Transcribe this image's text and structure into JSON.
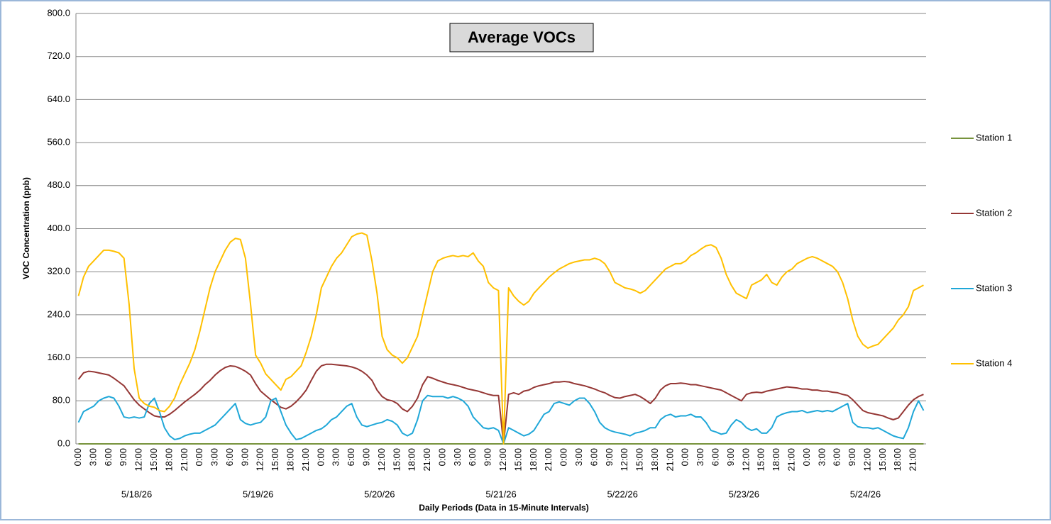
{
  "chart_data": {
    "type": "line",
    "title": "Average VOCs",
    "x_label": "Daily Periods (Data in 15-Minute Intervals)",
    "y_label": "VOC Concentration (ppb)",
    "ylim": [
      0,
      800
    ],
    "yticks": [
      {
        "value": 0,
        "label": "0.0"
      },
      {
        "value": 80,
        "label": "80.0"
      },
      {
        "value": 160,
        "label": "160.0"
      },
      {
        "value": 240,
        "label": "240.0"
      },
      {
        "value": 320,
        "label": "320.0"
      },
      {
        "value": 400,
        "label": "400.0"
      },
      {
        "value": 480,
        "label": "480.0"
      },
      {
        "value": 560,
        "label": "560.0"
      },
      {
        "value": 640,
        "label": "640.0"
      },
      {
        "value": 720,
        "label": "720.0"
      },
      {
        "value": 800,
        "label": "800.0"
      }
    ],
    "grid": true,
    "legend": "right",
    "dates": [
      "5/18/26",
      "5/19/26",
      "5/20/26",
      "5/21/26",
      "5/22/26",
      "5/23/26",
      "5/24/26"
    ],
    "categories": [
      "0:00",
      null,
      null,
      "3:00",
      null,
      null,
      "6:00",
      null,
      null,
      "9:00",
      null,
      null,
      "12:00",
      null,
      null,
      "15:00",
      null,
      null,
      "18:00",
      null,
      null,
      "21:00",
      null,
      null,
      "0:00",
      null,
      null,
      "3:00",
      null,
      null,
      "6:00",
      null,
      null,
      "9:00",
      null,
      null,
      "12:00",
      null,
      null,
      "15:00",
      null,
      null,
      "18:00",
      null,
      null,
      "21:00",
      null,
      null,
      "0:00",
      null,
      null,
      "3:00",
      null,
      null,
      "6:00",
      null,
      null,
      "9:00",
      null,
      null,
      "12:00",
      null,
      null,
      "15:00",
      null,
      null,
      "18:00",
      null,
      null,
      "21:00",
      null,
      null,
      "0:00",
      null,
      null,
      "3:00",
      null,
      null,
      "6:00",
      null,
      null,
      "9:00",
      null,
      null,
      "12:00",
      null,
      null,
      "15:00",
      null,
      null,
      "18:00",
      null,
      null,
      "21:00",
      null,
      null,
      "0:00",
      null,
      null,
      "3:00",
      null,
      null,
      "6:00",
      null,
      null,
      "9:00",
      null,
      null,
      "12:00",
      null,
      null,
      "15:00",
      null,
      null,
      "18:00",
      null,
      null,
      "21:00",
      null,
      null,
      "0:00",
      null,
      null,
      "3:00",
      null,
      null,
      "6:00",
      null,
      null,
      "9:00",
      null,
      null,
      "12:00",
      null,
      null,
      "15:00",
      null,
      null,
      "18:00",
      null,
      null,
      "21:00",
      null,
      null,
      "0:00",
      null,
      null,
      "3:00",
      null,
      null,
      "6:00",
      null,
      null,
      "9:00",
      null,
      null,
      "12:00",
      null,
      null,
      "15:00",
      null,
      null,
      "18:00",
      null,
      null,
      "21:00",
      null,
      null
    ],
    "series": [
      {
        "name": "Station 1",
        "color": "#77933c",
        "values": [
          0,
          0,
          0,
          0,
          0,
          0,
          0,
          0,
          0,
          0,
          0,
          0,
          0,
          0,
          0,
          0,
          0,
          0,
          0,
          0,
          0,
          0,
          0,
          0,
          0,
          0,
          0,
          0,
          0,
          0,
          0,
          0,
          0,
          0,
          0,
          0,
          0,
          0,
          0,
          0,
          0,
          0,
          0,
          0,
          0,
          0,
          0,
          0,
          0,
          0,
          0,
          0,
          0,
          0,
          0,
          0,
          0,
          0,
          0,
          0,
          0,
          0,
          0,
          0,
          0,
          0,
          0,
          0,
          0,
          0,
          0,
          0,
          0,
          0,
          0,
          0,
          0,
          0,
          0,
          0,
          0,
          0,
          0,
          0,
          0,
          0,
          0,
          0,
          0,
          0,
          0,
          0,
          0,
          0,
          0,
          0,
          0,
          0,
          0,
          0,
          0,
          0,
          0,
          0,
          0,
          0,
          0,
          0,
          0,
          0,
          0,
          0,
          0,
          0,
          0,
          0,
          0,
          0,
          0,
          0,
          0,
          0,
          0,
          0,
          0,
          0,
          0,
          0,
          0,
          0,
          0,
          0,
          0,
          0,
          0,
          0,
          0,
          0,
          0,
          0,
          0,
          0,
          0,
          0,
          0,
          0,
          0,
          0,
          0,
          0,
          0,
          0,
          0,
          0,
          0,
          0,
          0,
          0,
          0,
          0,
          0,
          0,
          0,
          0,
          0,
          0,
          0,
          0
        ]
      },
      {
        "name": "Station 2",
        "color": "#953735",
        "values": [
          120,
          132,
          135,
          134,
          132,
          130,
          128,
          122,
          115,
          108,
          95,
          82,
          72,
          65,
          58,
          52,
          50,
          50,
          55,
          62,
          70,
          78,
          85,
          92,
          100,
          110,
          118,
          128,
          136,
          142,
          145,
          144,
          140,
          135,
          128,
          112,
          98,
          90,
          82,
          75,
          68,
          65,
          70,
          78,
          88,
          100,
          118,
          135,
          145,
          148,
          148,
          147,
          146,
          145,
          143,
          140,
          135,
          128,
          118,
          100,
          88,
          82,
          80,
          75,
          65,
          60,
          70,
          85,
          110,
          125,
          122,
          118,
          115,
          112,
          110,
          108,
          105,
          102,
          100,
          98,
          95,
          92,
          90,
          90,
          0,
          92,
          95,
          92,
          98,
          100,
          105,
          108,
          110,
          112,
          115,
          115,
          116,
          115,
          112,
          110,
          108,
          105,
          102,
          98,
          95,
          90,
          86,
          85,
          88,
          90,
          92,
          88,
          82,
          75,
          85,
          100,
          108,
          112,
          112,
          113,
          112,
          110,
          110,
          108,
          106,
          104,
          102,
          100,
          95,
          90,
          85,
          80,
          92,
          95,
          96,
          95,
          98,
          100,
          102,
          104,
          106,
          105,
          104,
          102,
          102,
          100,
          100,
          98,
          98,
          96,
          95,
          92,
          90,
          82,
          72,
          62,
          58,
          56,
          54,
          52,
          48,
          45,
          48,
          60,
          72,
          82,
          88,
          92
        ]
      },
      {
        "name": "Station 3",
        "color": "#1fa7d8",
        "values": [
          40,
          60,
          65,
          70,
          80,
          85,
          88,
          85,
          70,
          50,
          48,
          50,
          48,
          50,
          75,
          85,
          60,
          30,
          15,
          8,
          10,
          15,
          18,
          20,
          20,
          25,
          30,
          35,
          45,
          55,
          65,
          75,
          45,
          38,
          35,
          38,
          40,
          50,
          80,
          85,
          60,
          35,
          20,
          8,
          10,
          15,
          20,
          25,
          28,
          35,
          45,
          50,
          60,
          70,
          75,
          50,
          35,
          32,
          35,
          38,
          40,
          45,
          42,
          35,
          20,
          15,
          20,
          45,
          80,
          90,
          88,
          88,
          88,
          85,
          88,
          85,
          80,
          70,
          50,
          40,
          30,
          28,
          30,
          25,
          0,
          30,
          25,
          20,
          15,
          18,
          25,
          40,
          55,
          60,
          75,
          78,
          75,
          72,
          80,
          85,
          85,
          75,
          60,
          40,
          30,
          25,
          22,
          20,
          18,
          15,
          20,
          22,
          25,
          30,
          30,
          45,
          52,
          55,
          50,
          52,
          52,
          55,
          50,
          50,
          40,
          25,
          22,
          18,
          20,
          35,
          45,
          40,
          30,
          25,
          28,
          20,
          20,
          30,
          50,
          55,
          58,
          60,
          60,
          62,
          58,
          60,
          62,
          60,
          62,
          60,
          65,
          70,
          75,
          40,
          32,
          30,
          30,
          28,
          30,
          25,
          20,
          15,
          12,
          10,
          30,
          60,
          80,
          62
        ]
      },
      {
        "name": "Station 4",
        "color": "#ffc000",
        "values": [
          275,
          310,
          330,
          340,
          350,
          360,
          360,
          358,
          355,
          345,
          260,
          140,
          85,
          75,
          70,
          68,
          62,
          60,
          70,
          85,
          110,
          130,
          150,
          175,
          210,
          250,
          290,
          320,
          340,
          360,
          375,
          382,
          380,
          345,
          260,
          165,
          150,
          130,
          120,
          110,
          100,
          120,
          125,
          135,
          145,
          170,
          200,
          240,
          290,
          310,
          330,
          345,
          355,
          370,
          385,
          390,
          392,
          388,
          340,
          280,
          200,
          175,
          165,
          160,
          150,
          160,
          180,
          200,
          240,
          280,
          320,
          340,
          345,
          348,
          350,
          348,
          350,
          348,
          355,
          340,
          330,
          300,
          290,
          285,
          0,
          290,
          275,
          265,
          258,
          265,
          280,
          290,
          300,
          310,
          318,
          325,
          330,
          335,
          338,
          340,
          342,
          342,
          345,
          342,
          335,
          320,
          300,
          295,
          290,
          288,
          285,
          280,
          285,
          295,
          305,
          315,
          325,
          330,
          335,
          335,
          340,
          350,
          355,
          362,
          368,
          370,
          365,
          345,
          315,
          295,
          280,
          275,
          270,
          295,
          300,
          305,
          315,
          300,
          295,
          310,
          320,
          325,
          335,
          340,
          345,
          348,
          345,
          340,
          335,
          330,
          320,
          300,
          270,
          230,
          200,
          185,
          178,
          182,
          185,
          195,
          205,
          215,
          230,
          240,
          255,
          285,
          290,
          295
        ]
      }
    ]
  }
}
